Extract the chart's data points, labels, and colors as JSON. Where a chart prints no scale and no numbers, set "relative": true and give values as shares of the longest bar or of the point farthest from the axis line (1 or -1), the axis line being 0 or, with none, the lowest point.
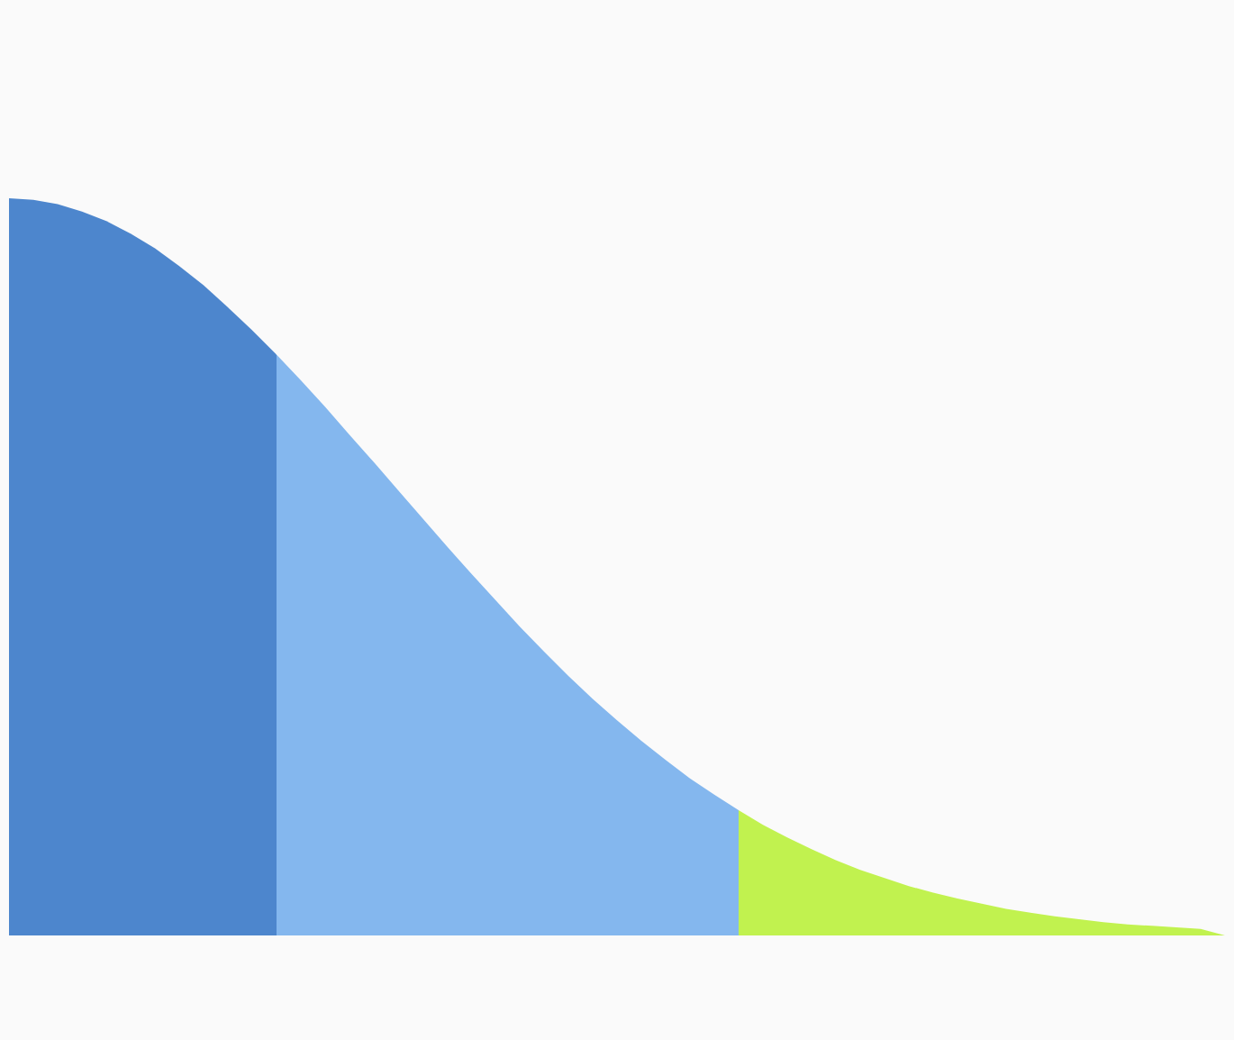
{
  "chart_data": {
    "type": "area",
    "relative": true,
    "categories": [
      null,
      null,
      null,
      null,
      null,
      null,
      null,
      null,
      null,
      null,
      null,
      null,
      null,
      null,
      null,
      null,
      null,
      null,
      null,
      null,
      null,
      null,
      null,
      null,
      null,
      null,
      null,
      null,
      null,
      null,
      null,
      null,
      null,
      null,
      null,
      null,
      null,
      null,
      null,
      null,
      null,
      null,
      null,
      null,
      null,
      null,
      null,
      null,
      null,
      null,
      null
    ],
    "series": [
      {
        "color": "#4d86cd",
        "values": [
          1.0,
          0.998,
          0.992,
          0.982,
          0.969,
          0.952,
          0.932,
          0.908,
          0.882,
          0.852,
          0.821,
          0.788,
          null,
          null,
          null,
          null,
          null,
          null,
          null,
          null,
          null,
          null,
          null,
          null,
          null,
          null,
          null,
          null,
          null,
          null,
          null,
          null,
          null,
          null,
          null,
          null,
          null,
          null,
          null,
          null,
          null,
          null,
          null,
          null,
          null,
          null,
          null,
          null,
          null,
          null,
          null
        ]
      },
      {
        "color": "#84b7ee",
        "values": [
          null,
          null,
          null,
          null,
          null,
          null,
          null,
          null,
          null,
          null,
          null,
          0.788,
          0.753,
          0.717,
          0.679,
          0.642,
          0.604,
          0.566,
          0.528,
          0.491,
          0.455,
          0.419,
          0.385,
          0.352,
          0.321,
          0.292,
          0.264,
          0.238,
          0.213,
          0.191,
          0.17,
          null,
          null,
          null,
          null,
          null,
          null,
          null,
          null,
          null,
          null,
          null,
          null,
          null,
          null,
          null,
          null,
          null,
          null,
          null,
          null
        ]
      },
      {
        "color": "#c1f24f",
        "values": [
          null,
          null,
          null,
          null,
          null,
          null,
          null,
          null,
          null,
          null,
          null,
          null,
          null,
          null,
          null,
          null,
          null,
          null,
          null,
          null,
          null,
          null,
          null,
          null,
          null,
          null,
          null,
          null,
          null,
          null,
          0.17,
          0.15,
          0.133,
          0.117,
          0.102,
          0.089,
          0.078,
          0.067,
          0.058,
          0.05,
          0.043,
          0.036,
          0.031,
          0.026,
          0.022,
          0.018,
          0.015,
          0.013,
          0.011,
          0.009,
          0
        ]
      }
    ]
  }
}
